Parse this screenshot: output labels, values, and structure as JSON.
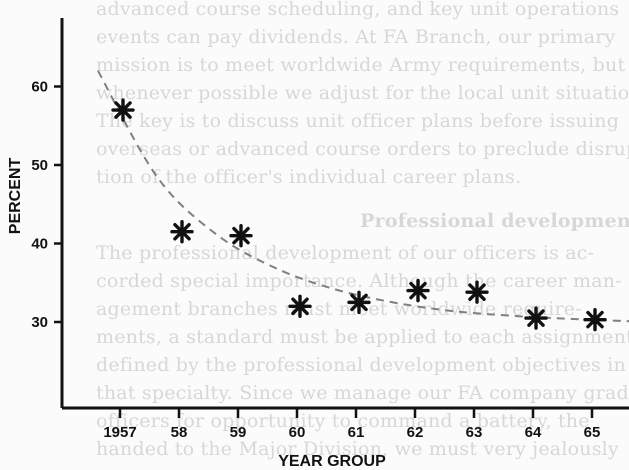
{
  "background_text": [
    "advanced course scheduling, and key unit operations",
    "events can pay dividends. At FA Branch, our primary",
    "mission is to meet worldwide Army requirements, but",
    "whenever possible we adjust for the local unit situation.",
    "The key is to discuss unit officer plans before issuing",
    "overseas or advanced course orders to preclude disrup-",
    "tion of the officer's individual career plans.",
    "Professional development",
    "The professional development of our officers is ac-",
    "corded special importance. Although the career man-",
    "agement branches must meet worldwide require-",
    "ments, a standard must be applied to each assignment as",
    "defined by the professional development objectives in",
    "that specialty. Since we manage our FA company grade",
    "officers for opportunity to command a battery, the",
    "handed to the Major Division, we must very jealously"
  ],
  "chart_data": {
    "type": "scatter",
    "xlabel": "YEAR GROUP",
    "ylabel": "PERCENT",
    "categories": [
      "1957",
      "58",
      "59",
      "60",
      "61",
      "62",
      "63",
      "64",
      "65"
    ],
    "values": [
      57,
      41.5,
      41,
      32,
      32.5,
      34,
      33.8,
      30.5,
      30.3
    ],
    "trend_line": [
      62,
      48.5,
      41.2,
      36.9,
      34.2,
      32.5,
      31.4,
      30.8,
      30.4
    ],
    "trend_style": "dashed",
    "marker": "star",
    "ylim": [
      25,
      66
    ],
    "yticks": [
      30,
      40,
      50,
      60
    ],
    "colors": {
      "ink": "#111111",
      "trend": "#808080",
      "ghost_text": "#d7d7d7"
    }
  }
}
